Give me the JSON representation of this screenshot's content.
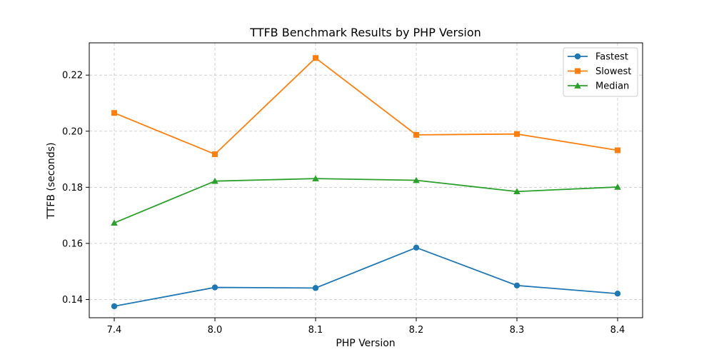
{
  "chart_data": {
    "type": "line",
    "title": "TTFB Benchmark Results by PHP Version",
    "xlabel": "PHP Version",
    "ylabel": "TTFB (seconds)",
    "categories": [
      "7.4",
      "8.0",
      "8.1",
      "8.2",
      "8.3",
      "8.4"
    ],
    "ylim": [
      0.1335,
      0.2315
    ],
    "yticks": [
      0.14,
      0.16,
      0.18,
      0.2,
      0.22
    ],
    "ytick_labels": [
      "0.14",
      "0.16",
      "0.18",
      "0.20",
      "0.22"
    ],
    "grid": true,
    "legend_position": "top-right",
    "series": [
      {
        "name": "Fastest",
        "marker": "circle",
        "color": "#1f77b4",
        "values": [
          0.1376,
          0.1443,
          0.1441,
          0.1585,
          0.145,
          0.1421
        ]
      },
      {
        "name": "Slowest",
        "marker": "square",
        "color": "#ff7f0e",
        "values": [
          0.2065,
          0.1918,
          0.2261,
          0.1987,
          0.199,
          0.1932
        ]
      },
      {
        "name": "Median",
        "marker": "triangle",
        "color": "#2ca02c",
        "values": [
          0.1673,
          0.1822,
          0.1831,
          0.1825,
          0.1785,
          0.1801
        ]
      }
    ]
  }
}
